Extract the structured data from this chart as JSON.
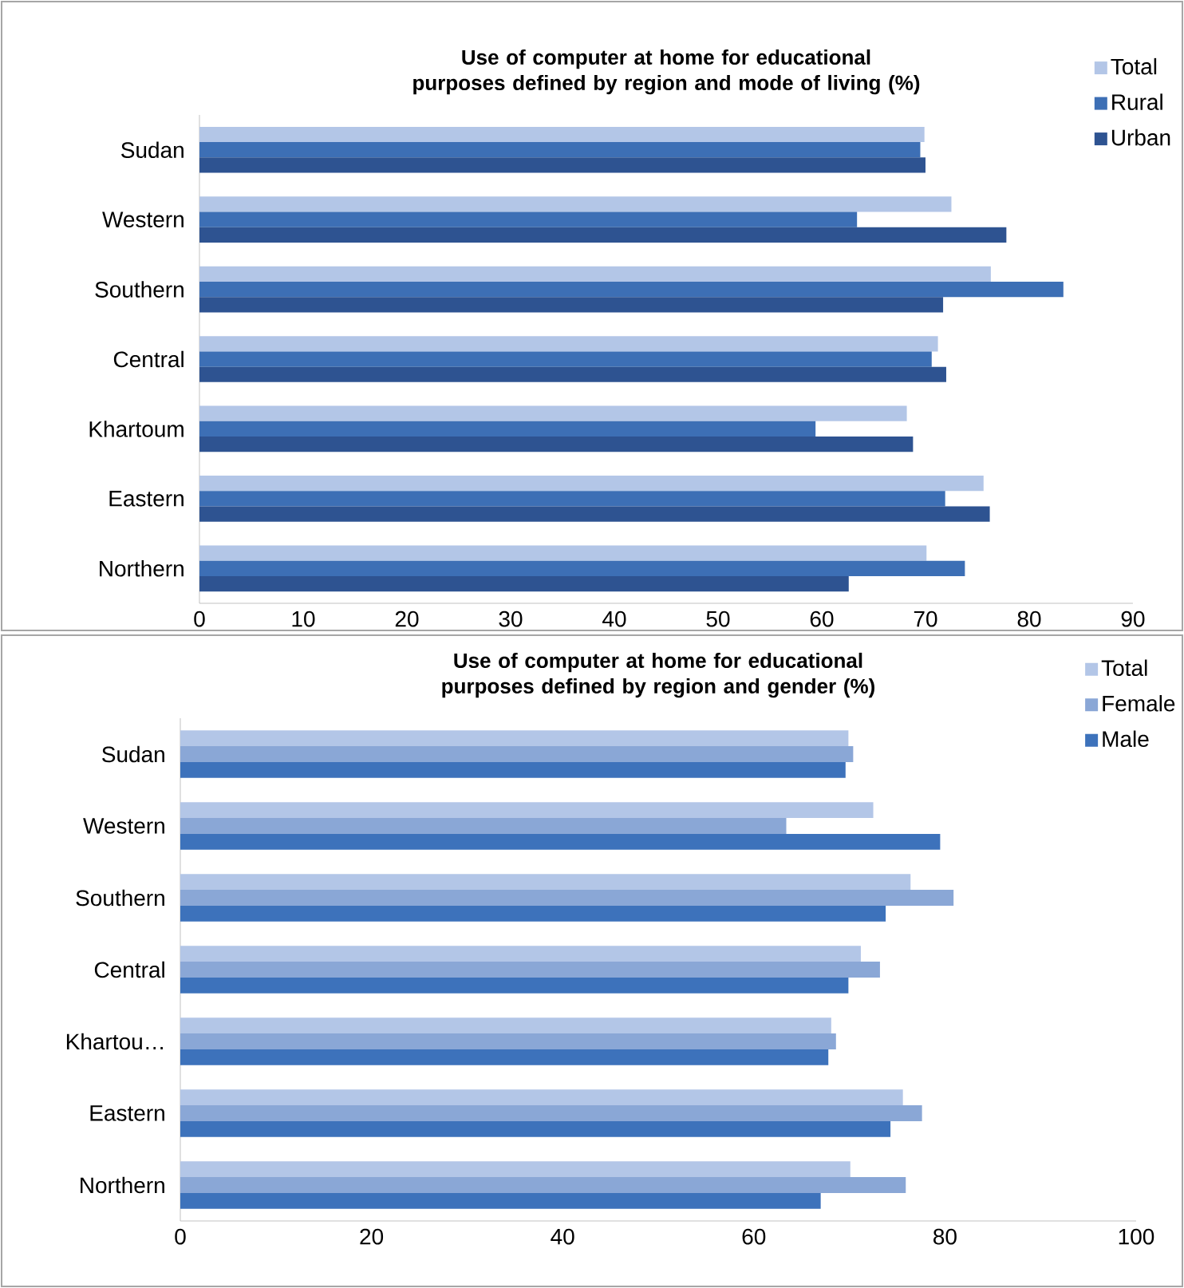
{
  "chart_data": [
    {
      "type": "bar",
      "orientation": "horizontal",
      "title": "Use of computer at home for educational purposes defined by region and mode of living (%)",
      "categories": [
        "Sudan",
        "Western",
        "Southern",
        "Central",
        "Khartoum",
        "Eastern",
        "Northern"
      ],
      "series": [
        {
          "name": "Total",
          "color": "#b3c6e7",
          "values": [
            69.9,
            72.5,
            76.3,
            71.2,
            68.2,
            75.6,
            70.1
          ]
        },
        {
          "name": "Rural",
          "color": "#3d6fb5",
          "values": [
            69.5,
            63.4,
            83.3,
            70.6,
            59.4,
            71.9,
            73.8
          ]
        },
        {
          "name": "Urban",
          "color": "#2e5391",
          "values": [
            70.0,
            77.8,
            71.7,
            72.0,
            68.8,
            76.2,
            62.6
          ]
        }
      ],
      "xlim": [
        0,
        90
      ],
      "xticks": [
        0,
        10,
        20,
        30,
        40,
        50,
        60,
        70,
        80,
        90
      ],
      "legend": "top right"
    },
    {
      "type": "bar",
      "orientation": "horizontal",
      "title": "Use of computer at home for educational purposes defined by region and gender (%)",
      "categories": [
        "Sudan",
        "Western",
        "Southern",
        "Central",
        "Khartou…",
        "Eastern",
        "Northern"
      ],
      "series": [
        {
          "name": "Total",
          "color": "#b3c6e7",
          "values": [
            69.9,
            72.5,
            76.4,
            71.2,
            68.1,
            75.6,
            70.1
          ]
        },
        {
          "name": "Female",
          "color": "#8aa7d6",
          "values": [
            70.4,
            63.4,
            80.9,
            73.2,
            68.6,
            77.6,
            75.9
          ]
        },
        {
          "name": "Male",
          "color": "#3d72bb",
          "values": [
            69.6,
            79.5,
            73.8,
            69.9,
            67.8,
            74.3,
            67.0
          ]
        }
      ],
      "xlim": [
        0,
        100
      ],
      "xticks": [
        0,
        20,
        40,
        60,
        80,
        100
      ],
      "legend": "top right"
    }
  ]
}
